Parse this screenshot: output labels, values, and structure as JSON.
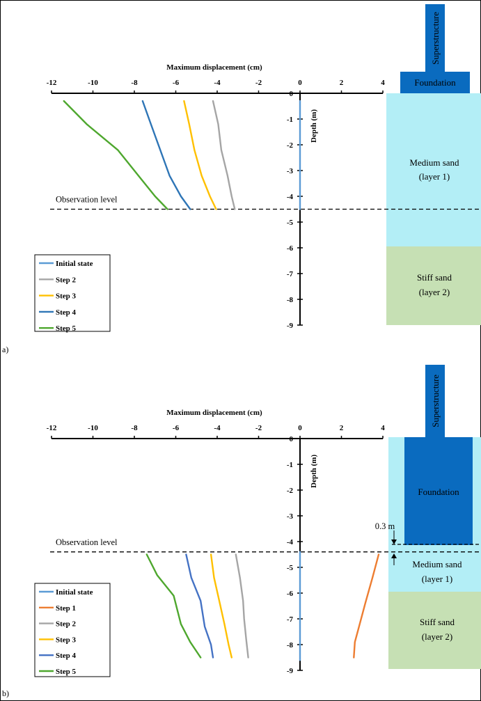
{
  "chart_data": [
    {
      "type": "line",
      "panel_label": "a)",
      "xlabel": "Maximum displacement (cm)",
      "ylabel": "Depth (m)",
      "xlim": [
        -12,
        4
      ],
      "ylim": [
        -9,
        0
      ],
      "x_ticks": [
        "-12",
        "-10",
        "-8",
        "-6",
        "-4",
        "-2",
        "0",
        "2",
        "4"
      ],
      "y_ticks": [
        "0",
        "-1",
        "-2",
        "-3",
        "-4",
        "-5",
        "-6",
        "-7",
        "-8",
        "-9"
      ],
      "observation_label": "Observation level",
      "observation_depth": -4.5,
      "series": [
        {
          "name": "Initial state",
          "color": "#5b9bd5",
          "points": [
            [
              0,
              -0.3
            ],
            [
              0,
              -4.5
            ]
          ]
        },
        {
          "name": "Step 2",
          "color": "#a5a5a5",
          "points": [
            [
              -4.2,
              -0.3
            ],
            [
              -3.95,
              -1.2
            ],
            [
              -3.8,
              -2.2
            ],
            [
              -3.5,
              -3.2
            ],
            [
              -3.3,
              -4.0
            ],
            [
              -3.15,
              -4.5
            ]
          ]
        },
        {
          "name": "Step 3",
          "color": "#ffc000",
          "points": [
            [
              -5.6,
              -0.3
            ],
            [
              -5.35,
              -1.2
            ],
            [
              -5.1,
              -2.2
            ],
            [
              -4.75,
              -3.2
            ],
            [
              -4.35,
              -4.0
            ],
            [
              -4.05,
              -4.5
            ]
          ]
        },
        {
          "name": "Step 4",
          "color": "#2e75b6",
          "points": [
            [
              -7.6,
              -0.3
            ],
            [
              -7.2,
              -1.2
            ],
            [
              -6.75,
              -2.2
            ],
            [
              -6.3,
              -3.2
            ],
            [
              -5.75,
              -4.0
            ],
            [
              -5.3,
              -4.5
            ]
          ]
        },
        {
          "name": "Step 5",
          "color": "#4ea72e",
          "points": [
            [
              -11.4,
              -0.3
            ],
            [
              -10.3,
              -1.2
            ],
            [
              -8.8,
              -2.2
            ],
            [
              -7.8,
              -3.2
            ],
            [
              -7.0,
              -4.0
            ],
            [
              -6.4,
              -4.5
            ]
          ]
        }
      ],
      "soil": {
        "superstructure": "Superstructure",
        "foundation": "Foundation",
        "layer1": [
          "Medium sand",
          "(layer 1)"
        ],
        "layer2": [
          "Stiff sand",
          "(layer 2)"
        ]
      }
    },
    {
      "type": "line",
      "panel_label": "b)",
      "xlabel": "Maximum displacement (cm)",
      "ylabel": "Depth (m)",
      "xlim": [
        -12,
        4
      ],
      "ylim": [
        -9,
        0
      ],
      "x_ticks": [
        "-12",
        "-10",
        "-8",
        "-6",
        "-4",
        "-2",
        "0",
        "2",
        "4"
      ],
      "y_ticks": [
        "0",
        "-1",
        "-2",
        "-3",
        "-4",
        "-5",
        "-6",
        "-7",
        "-8",
        "-9"
      ],
      "observation_label": "Observation level",
      "observation_depth": -4.4,
      "embedment_note": "0.3 m",
      "series": [
        {
          "name": "Initial state",
          "color": "#5b9bd5",
          "points": [
            [
              0,
              -4.4
            ],
            [
              0,
              -8.6
            ]
          ]
        },
        {
          "name": "Step 1",
          "color": "#ed7d31",
          "points": [
            [
              3.8,
              -4.5
            ],
            [
              3.5,
              -5.4
            ],
            [
              3.15,
              -6.4
            ],
            [
              2.85,
              -7.3
            ],
            [
              2.65,
              -7.9
            ],
            [
              2.6,
              -8.5
            ]
          ]
        },
        {
          "name": "Step 2",
          "color": "#a5a5a5",
          "points": [
            [
              -3.1,
              -4.5
            ],
            [
              -2.9,
              -5.4
            ],
            [
              -2.75,
              -6.3
            ],
            [
              -2.7,
              -7.0
            ],
            [
              -2.6,
              -7.8
            ],
            [
              -2.5,
              -8.5
            ]
          ]
        },
        {
          "name": "Step 3",
          "color": "#ffc000",
          "points": [
            [
              -4.3,
              -4.5
            ],
            [
              -4.15,
              -5.4
            ],
            [
              -3.9,
              -6.3
            ],
            [
              -3.65,
              -7.2
            ],
            [
              -3.45,
              -8.0
            ],
            [
              -3.3,
              -8.5
            ]
          ]
        },
        {
          "name": "Step 4",
          "color": "#4472c4",
          "points": [
            [
              -5.5,
              -4.5
            ],
            [
              -5.25,
              -5.4
            ],
            [
              -4.8,
              -6.3
            ],
            [
              -4.6,
              -7.3
            ],
            [
              -4.3,
              -8.0
            ],
            [
              -4.2,
              -8.5
            ]
          ]
        },
        {
          "name": "Step 5",
          "color": "#4ea72e",
          "points": [
            [
              -7.4,
              -4.5
            ],
            [
              -6.9,
              -5.3
            ],
            [
              -6.1,
              -6.1
            ],
            [
              -5.75,
              -7.2
            ],
            [
              -5.3,
              -7.9
            ],
            [
              -4.8,
              -8.5
            ]
          ]
        }
      ],
      "soil": {
        "superstructure": "Superstructure",
        "foundation": "Foundation",
        "layer1": [
          "Medium sand",
          "(layer 1)"
        ],
        "layer2": [
          "Stiff sand",
          "(layer 2)"
        ]
      }
    }
  ],
  "colors": {
    "sand_light": "#b3eef6",
    "stiff_sand": "#c6e0b4",
    "foundation": "#0a6bbf"
  }
}
